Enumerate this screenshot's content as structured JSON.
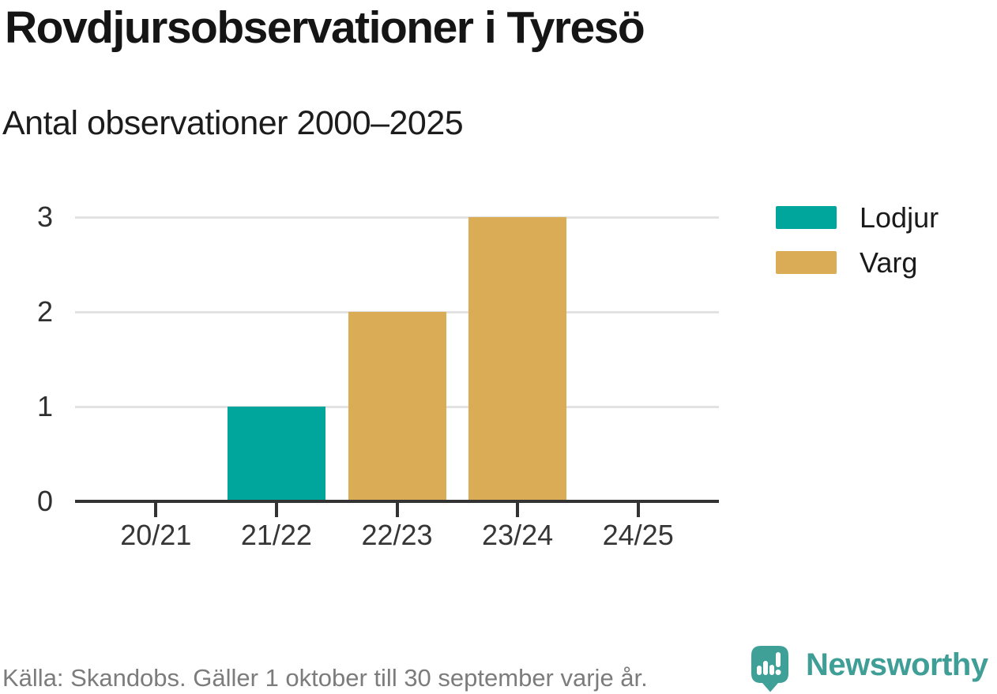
{
  "header": {
    "title": "Rovdjursobservationer i Tyresö",
    "subtitle": "Antal observationer 2000–2025"
  },
  "legend": {
    "position": "right",
    "items": [
      {
        "label": "Lodjur",
        "color": "#00a69c"
      },
      {
        "label": "Varg",
        "color": "#d9ac55"
      }
    ]
  },
  "footer": {
    "source": "Källa: Skandobs. Gäller 1 oktober till 30 september varje år.",
    "brand": "Newsworthy"
  },
  "colors": {
    "lodjur_teal": "#00a69c",
    "varg_tan": "#d9ac55",
    "axis": "#333333",
    "gridline": "#e2e2e2",
    "brand_teal": "#3f9e96",
    "footer_text": "#7c7c7c"
  },
  "chart_data": {
    "type": "bar",
    "title": "Rovdjursobservationer i Tyresö",
    "subtitle": "Antal observationer 2000–2025",
    "categories": [
      "20/21",
      "21/22",
      "22/23",
      "23/24",
      "24/25"
    ],
    "series": [
      {
        "name": "Lodjur",
        "color": "#00a69c",
        "values": [
          0,
          1,
          0,
          0,
          0
        ]
      },
      {
        "name": "Varg",
        "color": "#d9ac55",
        "values": [
          0,
          0,
          2,
          3,
          0
        ]
      }
    ],
    "xlabel": "",
    "ylabel": "",
    "ylim": [
      0,
      3
    ],
    "yticks": [
      0,
      1,
      2,
      3
    ],
    "grid": true,
    "legend_position": "right",
    "source_note": "Källa: Skandobs. Gäller 1 oktober till 30 september varje år."
  }
}
